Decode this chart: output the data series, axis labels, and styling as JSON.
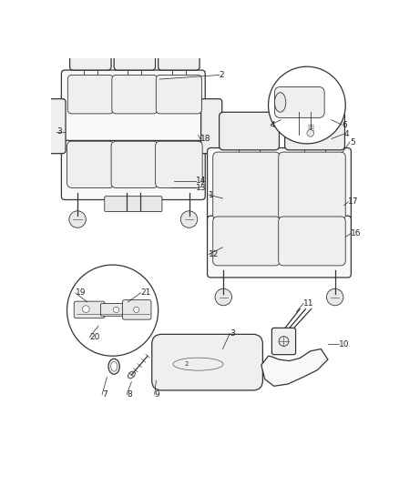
{
  "bg_color": "#ffffff",
  "line_color": "#333333",
  "label_color": "#222222",
  "lw_main": 0.9,
  "lw_detail": 0.6,
  "lw_thin": 0.4,
  "label_fontsize": 6.5,
  "seat_fill": "#f8f8f8",
  "seat_fill2": "#efefef",
  "seat_fill3": "#e8e8e8"
}
